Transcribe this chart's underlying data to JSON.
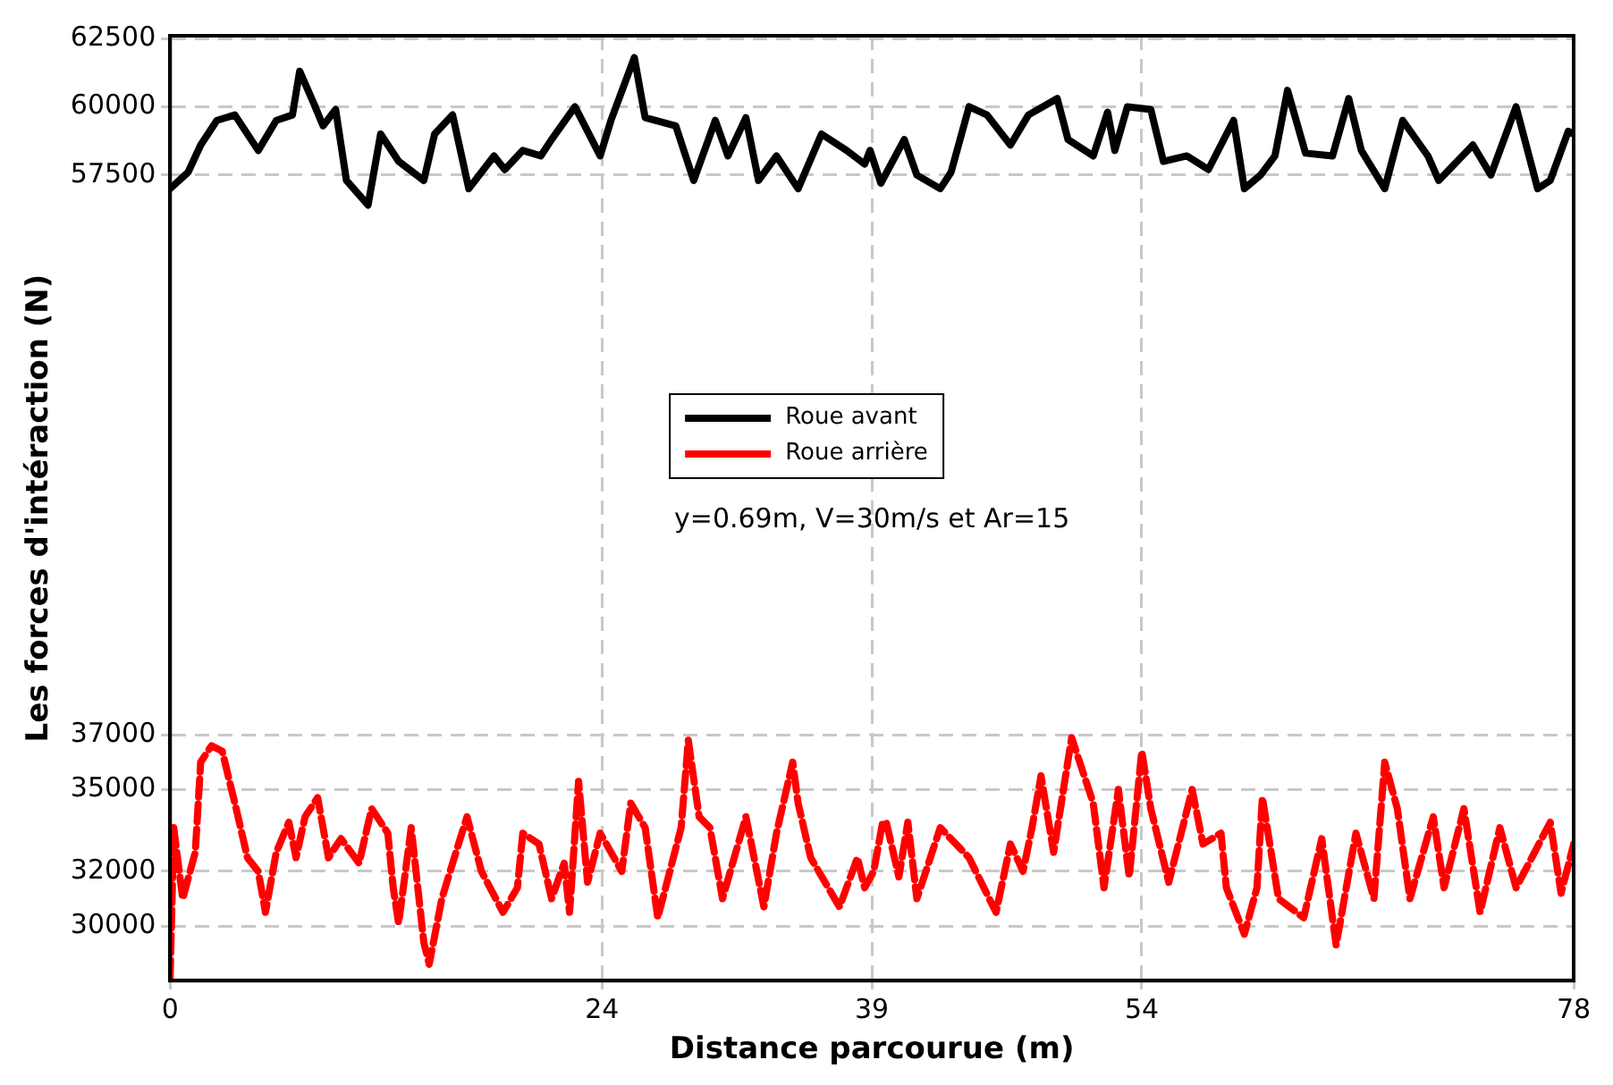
{
  "chart_data": {
    "type": "line",
    "xlabel": "Distance parcourue (m)",
    "ylabel": "Les forces d'intéraction (N)",
    "annotations": [
      "y=0.69m, V=30m/s et Ar=15"
    ],
    "xlim": [
      0,
      78
    ],
    "xticks": [
      0,
      24,
      39,
      54,
      78
    ],
    "ylim": [
      28000,
      62600
    ],
    "yticks": [
      30000,
      32000,
      35000,
      37000,
      57500,
      60000,
      62500
    ],
    "grid": true,
    "legend": "center",
    "marker": "none",
    "series": [
      {
        "name": "Roue avant",
        "color": "#000000",
        "line_style": "solid",
        "x": [
          0,
          1,
          1.7,
          2.6,
          3.6,
          4.9,
          5.9,
          6.8,
          7.2,
          8,
          8.5,
          9.2,
          9.8,
          11,
          11.7,
          12.7,
          14.1,
          14.7,
          15.7,
          16.6,
          18,
          18.6,
          19.6,
          20.6,
          21.2,
          22.5,
          23.9,
          24.5,
          25.8,
          26.4,
          28.1,
          29.1,
          30.3,
          31,
          32,
          32.7,
          33.7,
          34.9,
          36.2,
          37.6,
          38.6,
          38.9,
          39.5,
          40.8,
          41.5,
          42.8,
          43.4,
          44.4,
          45.4,
          46.7,
          47.7,
          49.3,
          49.9,
          51.3,
          52.1,
          52.5,
          53.2,
          54.5,
          55.2,
          56.5,
          57.7,
          59.1,
          59.7,
          60.6,
          61.4,
          62.1,
          63.1,
          64.6,
          65.5,
          66.2,
          67.5,
          68.5,
          69.9,
          70.5,
          72.4,
          73.4,
          74.8,
          76,
          76.7,
          77.7,
          78
        ],
        "values": [
          57000,
          57600,
          58600,
          59500,
          59700,
          58400,
          59500,
          59700,
          61300,
          60100,
          59300,
          59900,
          57300,
          56400,
          59000,
          58000,
          57300,
          59000,
          59700,
          57000,
          58200,
          57700,
          58400,
          58200,
          58800,
          60000,
          58200,
          59500,
          61800,
          59600,
          59300,
          57300,
          59500,
          58200,
          59600,
          57300,
          58200,
          57000,
          59000,
          58400,
          57900,
          58400,
          57200,
          58800,
          57500,
          57000,
          57600,
          60000,
          59700,
          58600,
          59700,
          60300,
          58800,
          58200,
          59800,
          58400,
          60000,
          59900,
          58000,
          58200,
          57700,
          59500,
          57000,
          57500,
          58200,
          60600,
          58300,
          58200,
          60300,
          58400,
          57000,
          59500,
          58200,
          57300,
          58600,
          57500,
          60000,
          57000,
          57300,
          59100,
          59000
        ]
      },
      {
        "name": "Roue arrière",
        "color": "#ff0000",
        "line_style": "dashed",
        "x": [
          0,
          0.1,
          0.2,
          0.7,
          1.4,
          1.7,
          2.3,
          2.9,
          3.3,
          3.6,
          4.3,
          4.9,
          5.3,
          5.9,
          6.6,
          7,
          7.5,
          8.2,
          8.8,
          9.5,
          10.5,
          11.2,
          12.1,
          12.4,
          12.7,
          13.4,
          14.1,
          14.4,
          15.1,
          15.7,
          16.5,
          17.3,
          18.5,
          19.3,
          19.6,
          20.5,
          21.2,
          21.9,
          22.2,
          22.7,
          23.2,
          23.9,
          25.1,
          25.6,
          26.4,
          27.1,
          28.4,
          28.8,
          29.4,
          30,
          30.7,
          32,
          33,
          33.7,
          34.6,
          34.9,
          35.6,
          37.2,
          38.2,
          38.6,
          39.1,
          39.6,
          39.8,
          40.5,
          41,
          41.5,
          42.8,
          44.4,
          45.9,
          46.7,
          47.4,
          47.9,
          48.4,
          49.1,
          50.1,
          51.3,
          51.9,
          52.7,
          53.3,
          54,
          54.5,
          55.5,
          56.8,
          57.4,
          58.4,
          58.7,
          59.7,
          60.4,
          60.7,
          61.6,
          63,
          64,
          64.8,
          65.9,
          66.9,
          67.5,
          68.2,
          68.9,
          70.2,
          70.8,
          71.9,
          72.8,
          73.9,
          74.8,
          76.7,
          77.3,
          78
        ],
        "values": [
          28100,
          30700,
          33600,
          31000,
          32700,
          36000,
          36600,
          36400,
          35300,
          34500,
          32500,
          32000,
          30500,
          32700,
          33800,
          32500,
          34000,
          34700,
          32500,
          33200,
          32300,
          34300,
          33400,
          31400,
          30100,
          33600,
          29400,
          28600,
          31000,
          32300,
          34000,
          32000,
          30500,
          31400,
          33400,
          33000,
          31000,
          32300,
          30500,
          35300,
          31600,
          33400,
          32000,
          34500,
          33600,
          30300,
          33600,
          36800,
          34000,
          33600,
          31000,
          34000,
          30700,
          33400,
          36000,
          34500,
          32500,
          30700,
          32500,
          31400,
          32000,
          33800,
          33800,
          31800,
          33800,
          31000,
          33600,
          32500,
          30500,
          33000,
          32000,
          33600,
          35500,
          32700,
          36900,
          34500,
          31400,
          35000,
          31800,
          36400,
          34300,
          31600,
          35000,
          33000,
          33400,
          31400,
          29700,
          31400,
          34700,
          31000,
          30300,
          33200,
          29300,
          33400,
          31000,
          36000,
          34300,
          31000,
          34000,
          31400,
          34300,
          30500,
          33600,
          31400,
          33800,
          31200,
          33000
        ]
      }
    ]
  }
}
